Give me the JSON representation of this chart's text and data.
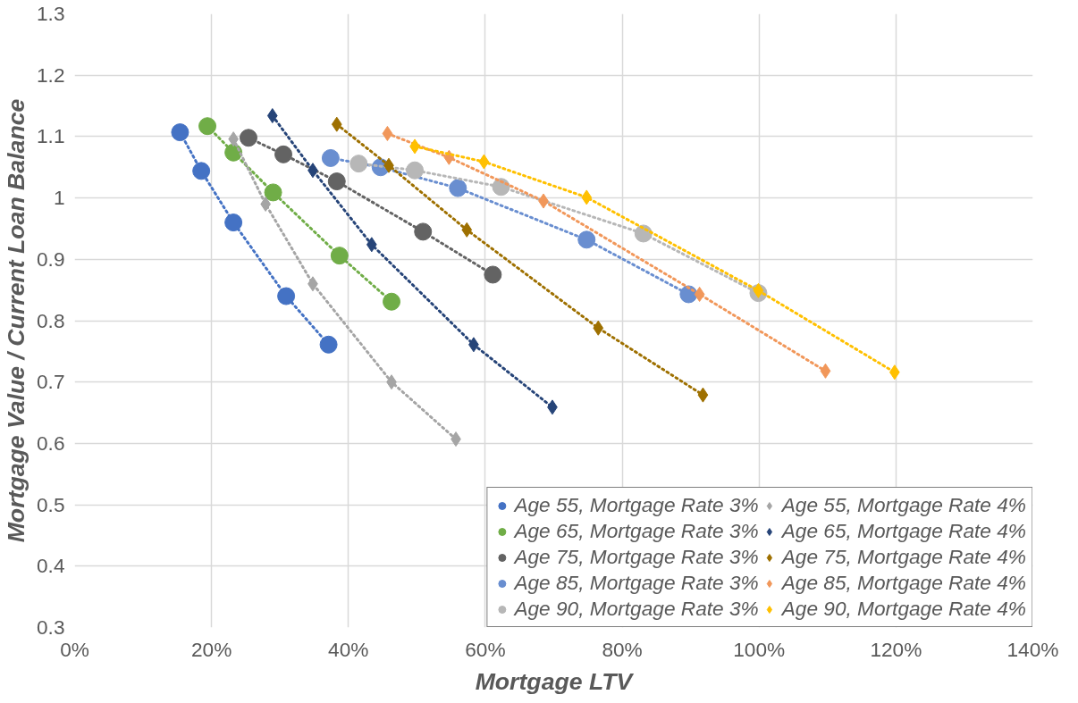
{
  "chart_data": {
    "type": "line",
    "xlabel": "Mortgage LTV",
    "ylabel": "Mortgage Value / Current Loan Balance",
    "xlim": [
      0,
      140
    ],
    "ylim": [
      0.3,
      1.3
    ],
    "xticks": [
      {
        "value": 0,
        "label": "0%"
      },
      {
        "value": 20,
        "label": "20%"
      },
      {
        "value": 40,
        "label": "40%"
      },
      {
        "value": 60,
        "label": "60%"
      },
      {
        "value": 80,
        "label": "80%"
      },
      {
        "value": 100,
        "label": "100%"
      },
      {
        "value": 120,
        "label": "120%"
      },
      {
        "value": 140,
        "label": "140%"
      }
    ],
    "yticks": [
      0.3,
      0.4,
      0.5,
      0.6,
      0.7,
      0.8,
      0.9,
      1,
      1.1,
      1.2,
      1.3
    ],
    "grid": true,
    "legend": "bottom right",
    "line_style": "dotted",
    "series": [
      {
        "name": "Age 55, Mortgage Rate 3%",
        "color": "#4472c4",
        "marker": "circle",
        "x": [
          15.4,
          18.5,
          23.2,
          30.9,
          37.1
        ],
        "values": [
          1.107,
          1.044,
          0.96,
          0.84,
          0.761
        ]
      },
      {
        "name": "Age 65, Mortgage Rate 3%",
        "color": "#70ad47",
        "marker": "circle",
        "x": [
          19.4,
          23.2,
          29,
          38.7,
          46.3
        ],
        "values": [
          1.117,
          1.074,
          1.009,
          0.906,
          0.831
        ]
      },
      {
        "name": "Age 75, Mortgage Rate 3%",
        "color": "#636363",
        "marker": "circle",
        "x": [
          25.4,
          30.5,
          38.3,
          50.9,
          61.1
        ],
        "values": [
          1.098,
          1.071,
          1.027,
          0.945,
          0.875
        ]
      },
      {
        "name": "Age 85, Mortgage Rate 3%",
        "color": "#698ed0",
        "marker": "circle",
        "x": [
          37.4,
          44.7,
          56,
          74.8,
          89.7
        ],
        "values": [
          1.065,
          1.05,
          1.016,
          0.932,
          0.843
        ]
      },
      {
        "name": "Age 90, Mortgage Rate 3%",
        "color": "#b7b7b7",
        "marker": "circle",
        "x": [
          41.5,
          49.7,
          62.3,
          83.1,
          99.9
        ],
        "values": [
          1.056,
          1.045,
          1.018,
          0.942,
          0.845
        ]
      },
      {
        "name": "Age 55, Mortgage Rate 4%",
        "color": "#a5a5a5",
        "marker": "diamond",
        "x": [
          23.2,
          27.9,
          34.8,
          46.3,
          55.7
        ],
        "values": [
          1.096,
          0.99,
          0.86,
          0.7,
          0.607
        ]
      },
      {
        "name": "Age 65, Mortgage Rate 4%",
        "color": "#264478",
        "marker": "diamond",
        "x": [
          28.9,
          34.8,
          43.4,
          58.3,
          69.8
        ],
        "values": [
          1.134,
          1.045,
          0.924,
          0.761,
          0.659
        ]
      },
      {
        "name": "Age 75, Mortgage Rate 4%",
        "color": "#9e7000",
        "marker": "diamond",
        "x": [
          38.3,
          45.9,
          57.3,
          76.5,
          91.8
        ],
        "values": [
          1.12,
          1.053,
          0.948,
          0.788,
          0.679
        ]
      },
      {
        "name": "Age 85, Mortgage Rate 4%",
        "color": "#f1975a",
        "marker": "diamond",
        "x": [
          45.7,
          54.7,
          68.5,
          91.3,
          109.7
        ],
        "values": [
          1.105,
          1.066,
          0.995,
          0.843,
          0.718
        ]
      },
      {
        "name": "Age 90, Mortgage Rate 4%",
        "color": "#ffc000",
        "marker": "diamond",
        "x": [
          49.7,
          59.8,
          74.8,
          99.9,
          119.8
        ],
        "values": [
          1.084,
          1.059,
          1.001,
          0.849,
          0.716
        ]
      }
    ]
  }
}
